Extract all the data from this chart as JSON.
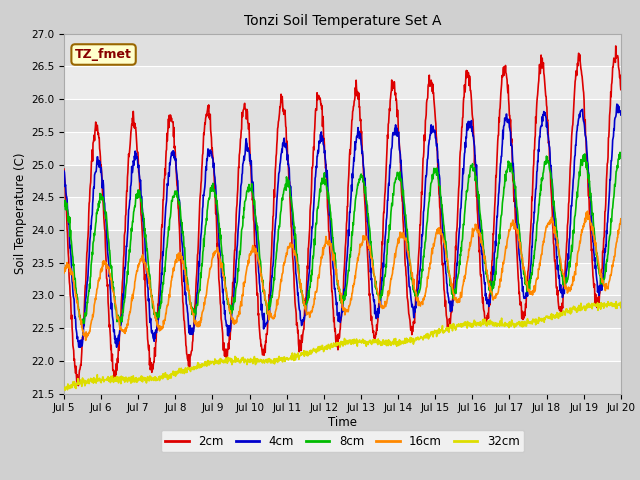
{
  "title": "Tonzi Soil Temperature Set A",
  "xlabel": "Time",
  "ylabel": "Soil Temperature (C)",
  "ylim": [
    21.5,
    27.0
  ],
  "annotation_text": "TZ_fmet",
  "annotation_facecolor": "#ffffcc",
  "annotation_edgecolor": "#996600",
  "annotation_textcolor": "#880000",
  "series": {
    "2cm": {
      "color": "#dd0000",
      "linewidth": 1.2
    },
    "4cm": {
      "color": "#0000cc",
      "linewidth": 1.2
    },
    "8cm": {
      "color": "#00bb00",
      "linewidth": 1.2
    },
    "16cm": {
      "color": "#ff8800",
      "linewidth": 1.2
    },
    "32cm": {
      "color": "#dddd00",
      "linewidth": 1.2
    }
  },
  "xtick_labels": [
    "Jul 5",
    "Jul 6",
    "Jul 7",
    "Jul 8",
    "Jul 9",
    "Jul 10",
    "Jul 11",
    "Jul 12",
    "Jul 13",
    "Jul 14",
    "Jul 15",
    "Jul 16",
    "Jul 17",
    "Jul 18",
    "Jul 19",
    "Jul 20"
  ],
  "xtick_positions": [
    0,
    1,
    2,
    3,
    4,
    5,
    6,
    7,
    8,
    9,
    10,
    11,
    12,
    13,
    14,
    15
  ],
  "band_colors": [
    "#e0e0e0",
    "#ebebeb"
  ]
}
